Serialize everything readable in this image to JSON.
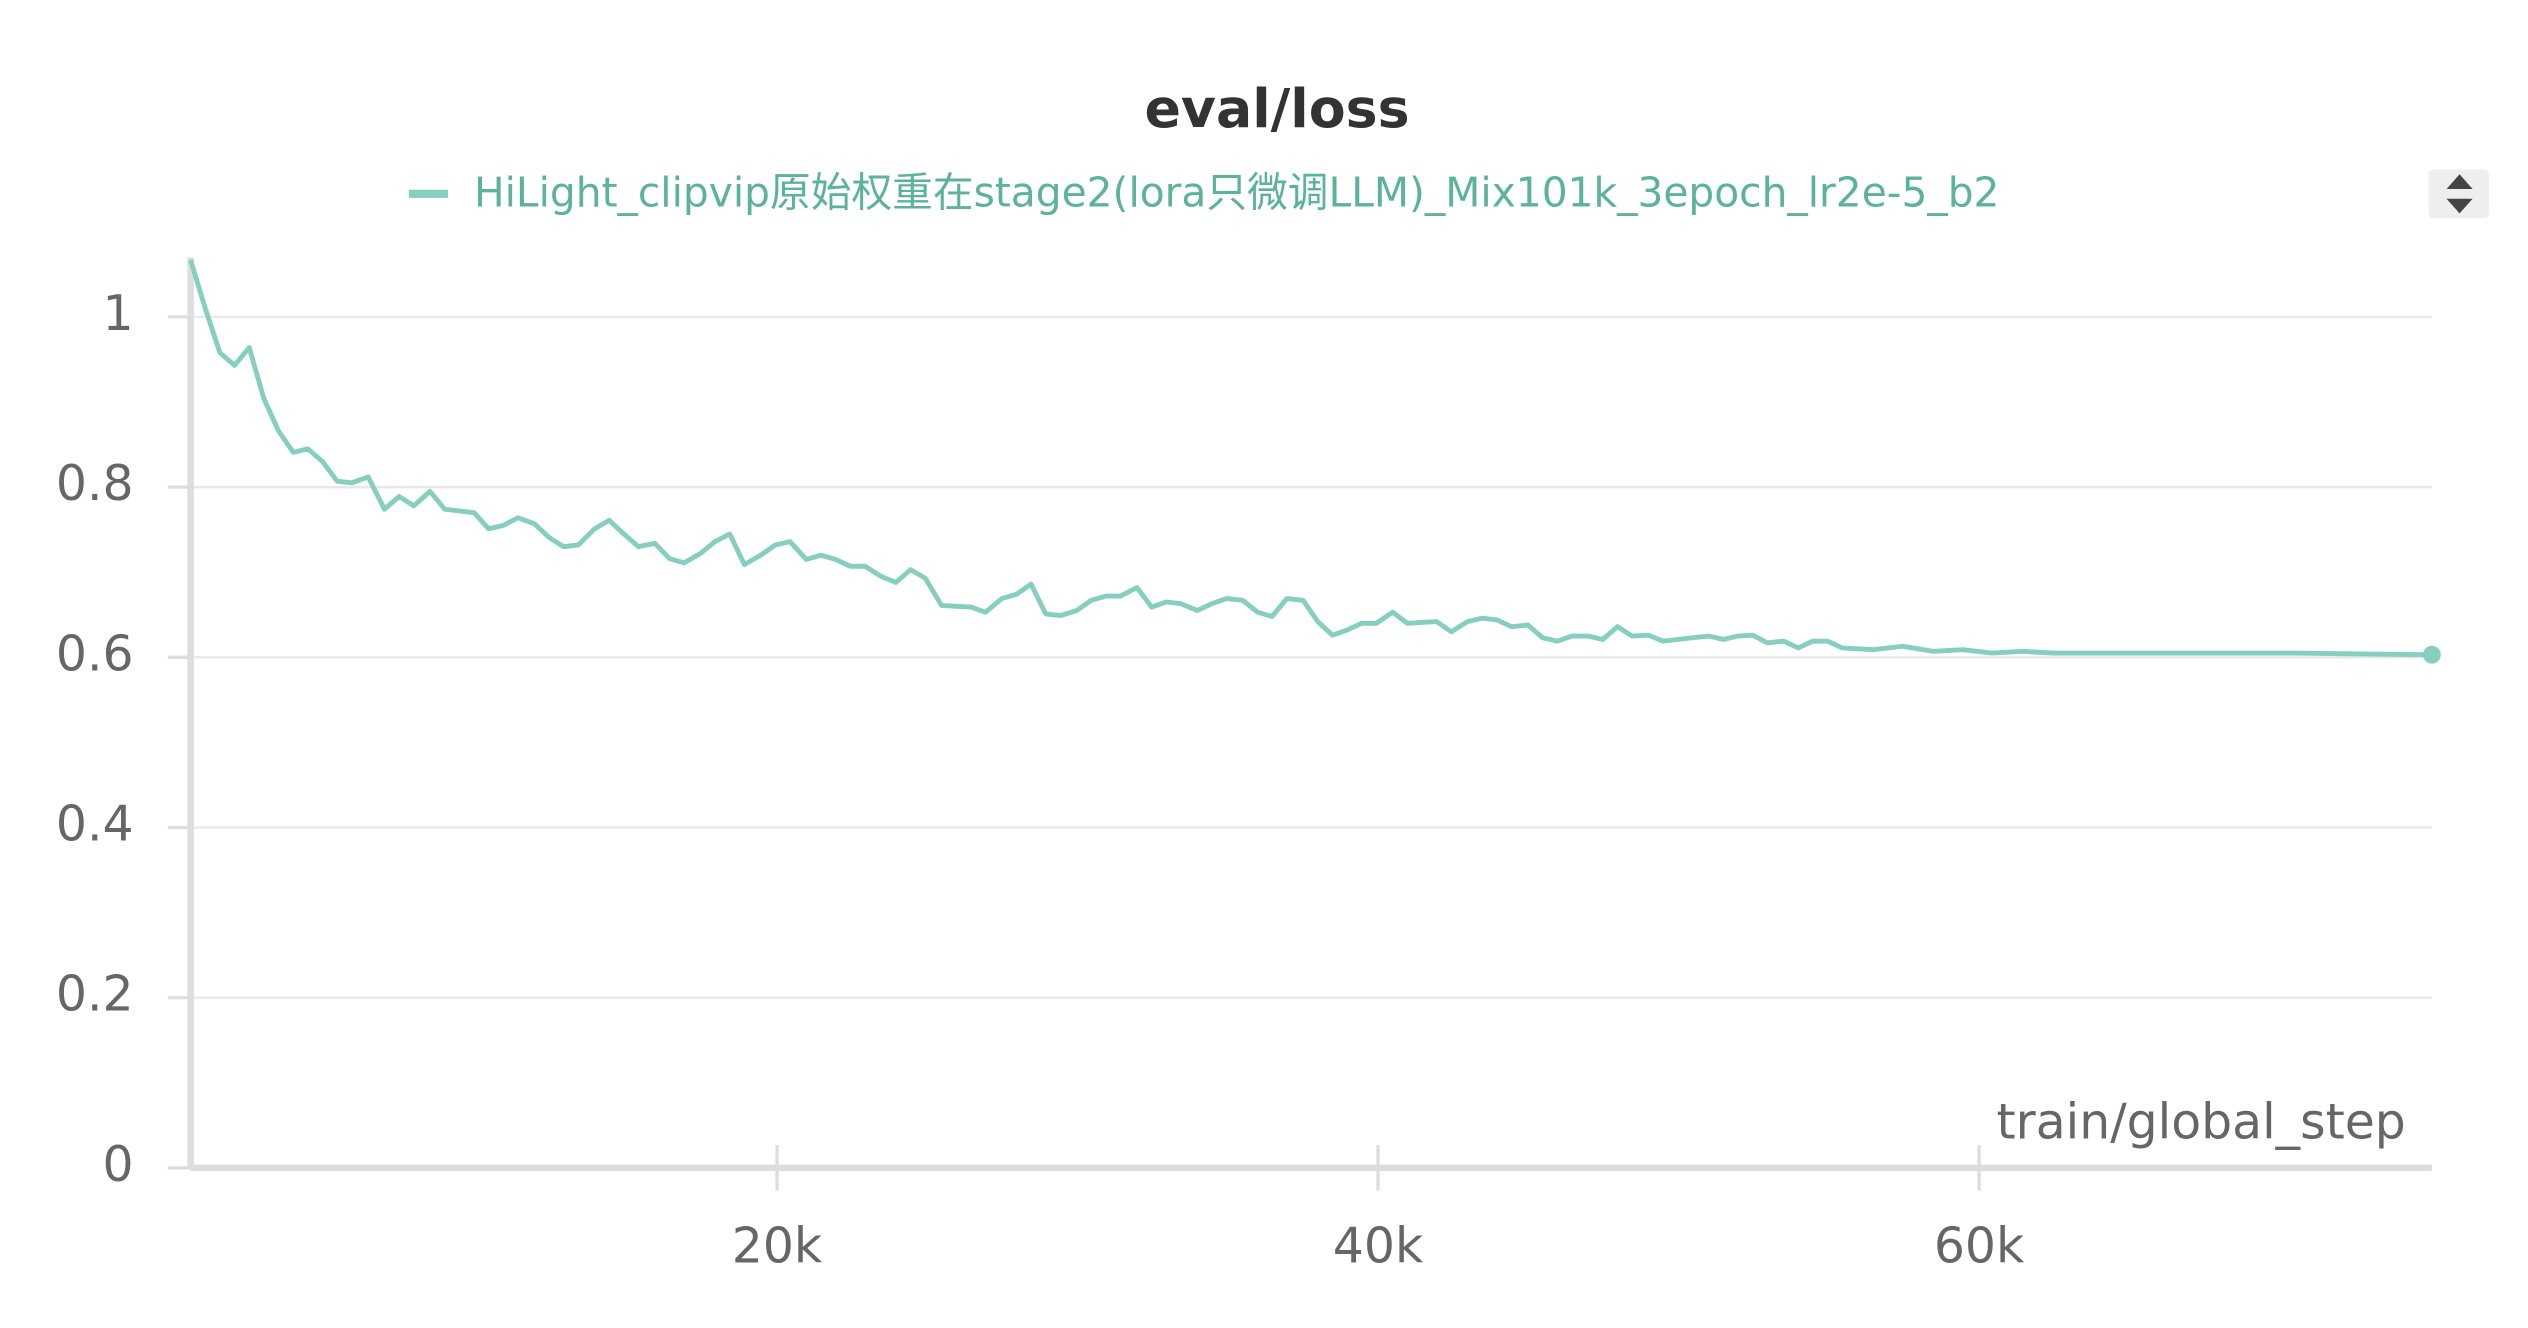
{
  "chart_data": {
    "type": "line",
    "title": "eval/loss",
    "xlabel": "train/global_step",
    "series": [
      {
        "name": "HiLight_clipvip原始权重在stage2(lora只微调LLM)_Mix101k_3epoch_lr2e-5_b2",
        "color": "#86cfbe",
        "x": [
          488,
          976,
          1463,
          1951,
          2439,
          2927,
          3415,
          3902,
          4390,
          4878,
          5366,
          5854,
          6396,
          6938,
          7425,
          7913,
          8455,
          8943,
          9919,
          10406,
          10894,
          11382,
          11924,
          12412,
          12900,
          13387,
          13929,
          14417,
          14905,
          15393,
          15935,
          16423,
          16910,
          17452,
          17940,
          18428,
          18916,
          19458,
          19946,
          20433,
          20975,
          21463,
          21951,
          22439,
          22927,
          23469,
          23956,
          24444,
          24932,
          25474,
          26450,
          26937,
          27479,
          27967,
          28455,
          28943,
          29431,
          29973,
          30460,
          30948,
          31436,
          31978,
          32466,
          32954,
          33441,
          33983,
          34471,
          34959,
          35501,
          35989,
          36477,
          36964,
          37506,
          37994,
          38482,
          38970,
          39458,
          39945,
          40487,
          40975,
          41951,
          42439,
          42981,
          43468,
          43956,
          44444,
          44986,
          45474,
          45962,
          46449,
          46991,
          47479,
          47967,
          48455,
          48997,
          49485,
          50460,
          51002,
          51490,
          51978,
          52466,
          52953,
          53495,
          53983,
          54471,
          54959,
          55447,
          56476,
          57452,
          58482,
          59458,
          60434,
          61463,
          62439,
          64444,
          66450,
          68455,
          70460,
          72737,
          75067
        ],
        "values": [
          1.067,
          1.01,
          0.958,
          0.943,
          0.964,
          0.904,
          0.866,
          0.841,
          0.845,
          0.83,
          0.807,
          0.805,
          0.812,
          0.774,
          0.789,
          0.778,
          0.795,
          0.774,
          0.77,
          0.751,
          0.755,
          0.764,
          0.757,
          0.741,
          0.73,
          0.732,
          0.751,
          0.761,
          0.745,
          0.73,
          0.734,
          0.716,
          0.711,
          0.722,
          0.736,
          0.745,
          0.709,
          0.72,
          0.732,
          0.736,
          0.715,
          0.72,
          0.715,
          0.707,
          0.707,
          0.695,
          0.688,
          0.703,
          0.693,
          0.661,
          0.659,
          0.653,
          0.669,
          0.674,
          0.686,
          0.651,
          0.649,
          0.655,
          0.667,
          0.672,
          0.672,
          0.682,
          0.659,
          0.665,
          0.663,
          0.655,
          0.663,
          0.669,
          0.667,
          0.653,
          0.648,
          0.669,
          0.667,
          0.642,
          0.626,
          0.632,
          0.64,
          0.64,
          0.653,
          0.64,
          0.642,
          0.63,
          0.642,
          0.646,
          0.644,
          0.636,
          0.638,
          0.623,
          0.619,
          0.625,
          0.625,
          0.621,
          0.636,
          0.625,
          0.626,
          0.619,
          0.623,
          0.625,
          0.621,
          0.625,
          0.626,
          0.617,
          0.619,
          0.611,
          0.619,
          0.619,
          0.611,
          0.609,
          0.613,
          0.607,
          0.609,
          0.605,
          0.607,
          0.605,
          0.605,
          0.605,
          0.605,
          0.605,
          0.604,
          0.603
        ]
      }
    ],
    "xlim": [
      488,
      75067
    ],
    "ylim": [
      0,
      1.07
    ],
    "xticks": [
      {
        "value": 20000,
        "label": "20k"
      },
      {
        "value": 40000,
        "label": "40k"
      },
      {
        "value": 60000,
        "label": "60k"
      }
    ],
    "yticks": [
      0,
      0.2,
      0.4,
      0.6,
      0.8,
      1
    ],
    "grid": true
  }
}
